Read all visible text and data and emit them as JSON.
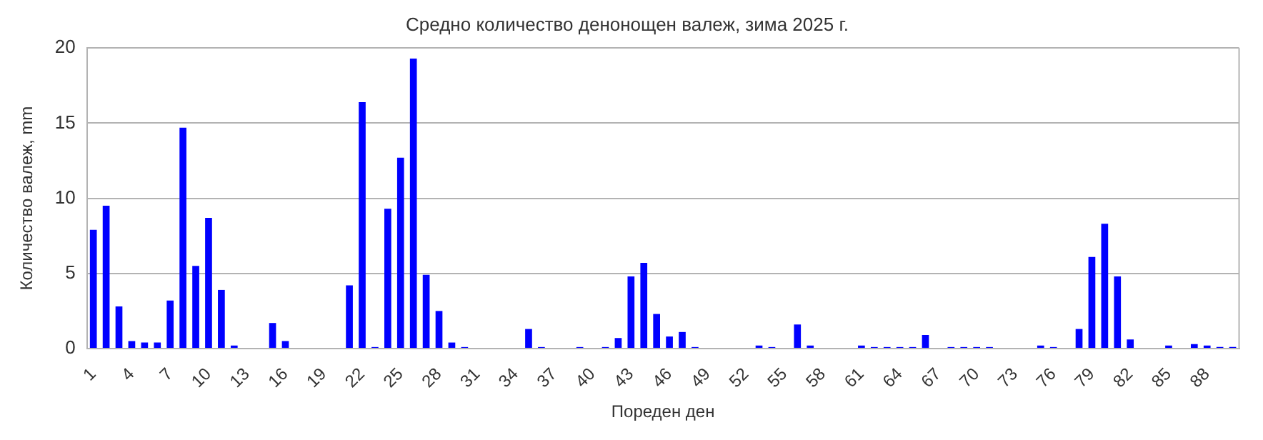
{
  "chart_data": {
    "type": "bar",
    "title": "Средно количество денонощен валеж, зима 2025 г.",
    "xlabel": "Пореден ден",
    "ylabel": "Количество валеж, mm",
    "categories": [
      "1",
      null,
      null,
      "4",
      null,
      null,
      "7",
      null,
      null,
      "10",
      null,
      null,
      "13",
      null,
      null,
      "16",
      null,
      null,
      "19",
      null,
      null,
      "22",
      null,
      null,
      "25",
      null,
      null,
      "28",
      null,
      null,
      "31",
      null,
      null,
      "34",
      null,
      null,
      "37",
      null,
      null,
      "40",
      null,
      null,
      "43",
      null,
      null,
      "46",
      null,
      null,
      "49",
      null,
      null,
      "52",
      null,
      null,
      "55",
      null,
      null,
      "58",
      null,
      null,
      "61",
      null,
      null,
      "64",
      null,
      null,
      "67",
      null,
      null,
      "70",
      null,
      null,
      "73",
      null,
      null,
      "76",
      null,
      null,
      "79",
      null,
      null,
      "82",
      null,
      null,
      "85",
      null,
      null,
      "88",
      null,
      null
    ],
    "values": [
      7.9,
      9.5,
      2.8,
      0.5,
      0.4,
      0.4,
      3.2,
      14.7,
      5.5,
      8.7,
      3.9,
      0.2,
      0,
      0,
      1.7,
      0.5,
      0,
      0,
      0,
      0,
      4.2,
      16.4,
      0.1,
      9.3,
      12.7,
      19.3,
      4.9,
      2.5,
      0.4,
      0.1,
      0,
      0,
      0,
      0,
      1.3,
      0.1,
      0,
      0,
      0.1,
      0,
      0.1,
      0.7,
      4.8,
      5.7,
      2.3,
      0.8,
      1.1,
      0.1,
      0,
      0,
      0,
      0,
      0.2,
      0.1,
      0,
      1.6,
      0.2,
      0,
      0,
      0,
      0.2,
      0.1,
      0.1,
      0.1,
      0.1,
      0.9,
      0,
      0.1,
      0.1,
      0.1,
      0.1,
      0,
      0,
      0,
      0.2,
      0.1,
      0,
      1.3,
      6.1,
      8.3,
      4.8,
      0.6,
      0,
      0,
      0.2,
      0,
      0.3,
      0.2,
      0.1,
      0.1
    ],
    "color": "#0000ff",
    "ylim": [
      0,
      20
    ],
    "yticks": [
      0,
      5,
      10,
      15,
      20
    ],
    "grid": "y",
    "legend": false
  }
}
